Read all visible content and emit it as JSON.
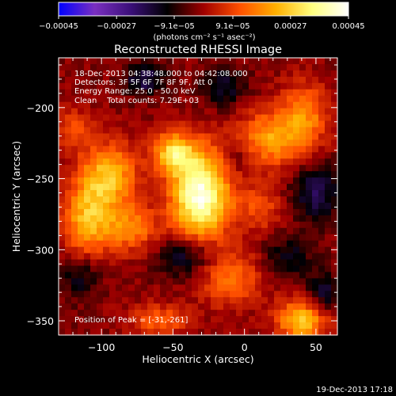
{
  "chart_data": {
    "type": "heatmap",
    "title": "Reconstructed RHESSI Image",
    "xlabel": "Heliocentric X (arcsec)",
    "ylabel": "Heliocentric Y (arcsec)",
    "xlim": [
      -130,
      65
    ],
    "ylim": [
      -360,
      -165
    ],
    "xticks": [
      -100,
      -50,
      0,
      50
    ],
    "yticks": [
      -200,
      -250,
      -300,
      -350
    ],
    "xtick_labels": [
      "−100",
      "−50",
      "0",
      "50"
    ],
    "ytick_labels": [
      "−200",
      "−250",
      "−300",
      "−350"
    ],
    "colorbar": {
      "range": [
        -0.00045,
        0.00045
      ],
      "ticks": [
        -0.00045,
        -0.00027,
        -9.1e-05,
        9.1e-05,
        0.00027,
        0.00045
      ],
      "tick_labels": [
        "−0.00045",
        "−0.00027",
        "−9.1e−05",
        "9.1e−05",
        "0.00027",
        "0.00045"
      ],
      "unit_label": "(photons cm⁻² s⁻¹ asec⁻²)",
      "colors": [
        "#0000ff",
        "#7a2fc0",
        "#3a0f78",
        "#000000",
        "#a00000",
        "#ff5000",
        "#ffb000",
        "#ffff80",
        "#ffffff"
      ]
    },
    "info_lines": [
      "18-Dec-2013 04:38:48.000 to 04:42:08.000",
      "Detectors: 3F 5F 6F 7F 8F 9F, Att 0",
      "Energy Range: 25.0 - 50.0 keV",
      "Clean    Total counts: 7.29E+03"
    ],
    "peak_label": "Position of Peak = [-31,-261]",
    "peak": [
      -31,
      -261
    ],
    "sources": [
      {
        "x": -31,
        "y": -261,
        "sx": 14,
        "sy": 22,
        "amp": 0.00045
      },
      {
        "x": -50,
        "y": -232,
        "sx": 10,
        "sy": 10,
        "amp": 0.00028
      },
      {
        "x": -95,
        "y": -248,
        "sx": 14,
        "sy": 16,
        "amp": 0.00026
      },
      {
        "x": -110,
        "y": -278,
        "sx": 12,
        "sy": 18,
        "amp": 0.00024
      },
      {
        "x": -80,
        "y": -285,
        "sx": 14,
        "sy": 12,
        "amp": 0.00018
      },
      {
        "x": 18,
        "y": -222,
        "sx": 16,
        "sy": 14,
        "amp": 0.00022
      },
      {
        "x": 42,
        "y": -205,
        "sx": 12,
        "sy": 16,
        "amp": 0.00018
      },
      {
        "x": 10,
        "y": -270,
        "sx": 12,
        "sy": 12,
        "amp": 0.00012
      },
      {
        "x": -10,
        "y": -320,
        "sx": 16,
        "sy": 14,
        "amp": 0.00016
      },
      {
        "x": 40,
        "y": -350,
        "sx": 12,
        "sy": 10,
        "amp": 0.00028
      },
      {
        "x": -60,
        "y": -350,
        "sx": 14,
        "sy": 8,
        "amp": 0.00015
      },
      {
        "x": -120,
        "y": -215,
        "sx": 10,
        "sy": 10,
        "amp": 0.00012
      },
      {
        "x": -70,
        "y": -180,
        "sx": 10,
        "sy": 8,
        "amp": -0.00016
      },
      {
        "x": -15,
        "y": -185,
        "sx": 10,
        "sy": 10,
        "amp": -0.00014
      },
      {
        "x": 50,
        "y": -260,
        "sx": 12,
        "sy": 14,
        "amp": -0.00016
      },
      {
        "x": 30,
        "y": -305,
        "sx": 12,
        "sy": 10,
        "amp": -0.00012
      },
      {
        "x": -40,
        "y": -305,
        "sx": 14,
        "sy": 10,
        "amp": -0.00016
      },
      {
        "x": -115,
        "y": -320,
        "sx": 10,
        "sy": 10,
        "amp": -0.00012
      },
      {
        "x": 55,
        "y": -330,
        "sx": 8,
        "sy": 10,
        "amp": -0.00014
      },
      {
        "x": -5,
        "y": -235,
        "sx": 8,
        "sy": 8,
        "amp": -8e-05
      }
    ]
  },
  "footer": {
    "timestamp": "19-Dec-2013 17:18"
  }
}
